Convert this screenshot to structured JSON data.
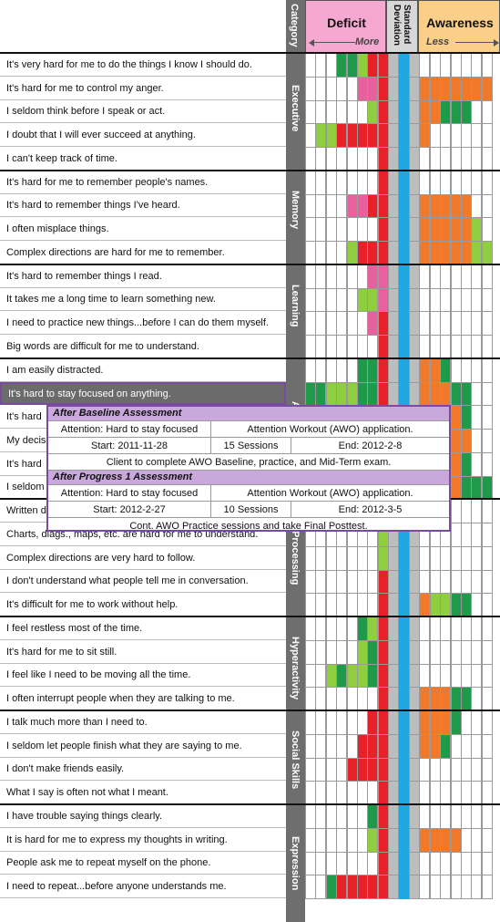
{
  "header": {
    "category": "Category",
    "deficit": "Deficit",
    "deficit_more": "More",
    "std_dev": "Standard Deviation",
    "awareness": "Awareness",
    "awareness_less": "Less"
  },
  "colors": {
    "deficit_header": "#f5a9d0",
    "awareness_header": "#f9cf8a",
    "std_dev_bar": "#1ea7e0",
    "category_strip": "#6e6e6e",
    "dark_green": "#1e9a4a",
    "light_green": "#8fce3e",
    "pink": "#e8609e",
    "red": "#e8202a",
    "orange": "#f07a2a",
    "gray": "#bdbdbd",
    "selection_border": "#7a4aa0"
  },
  "categories": [
    {
      "name": "Executive",
      "start": 0,
      "count": 5
    },
    {
      "name": "Memory",
      "start": 5,
      "count": 4
    },
    {
      "name": "Learning",
      "start": 9,
      "count": 4
    },
    {
      "name": "Attention",
      "start": 13,
      "count": 6
    },
    {
      "name": "Processing",
      "start": 19,
      "count": 5
    },
    {
      "name": "Hyperactivity",
      "start": 24,
      "count": 4
    },
    {
      "name": "Social Skills",
      "start": 28,
      "count": 4
    },
    {
      "name": "Expression",
      "start": 32,
      "count": 5
    }
  ],
  "items": [
    "It's very hard for me to do the things I know I should do.",
    "It's hard for me to control my anger.",
    "I seldom think before I speak or act.",
    "I doubt that I will ever succeed at anything.",
    "I can't keep track of time.",
    "It's hard for me to remember people's names.",
    "It's hard to remember things I've heard.",
    "I often misplace things.",
    "Complex directions are hard for me to remember.",
    "It's hard to remember things I read.",
    "It takes me a long time to learn something new.",
    "I need to practice new things...before I can do them myself.",
    "Big words are difficult for me to understand.",
    "I am easily distracted.",
    "It's hard to stay focused on anything.",
    "It's hard",
    "My decis",
    "It's hard",
    "I seldom",
    "Written d",
    "Charts, diags., maps, etc. are hard for me to understand.",
    "Complex directions are very hard to follow.",
    "I don't understand what people tell me in conversation.",
    "It's difficult for me to work without help.",
    "I feel restless most of the time.",
    "It's hard for me to sit still.",
    "I feel like I need to be moving all the time.",
    "I often interrupt people when they are talking to me.",
    "I talk much more than I need to.",
    "I seldom let people finish what they are saying to me.",
    "I don't make friends easily.",
    "What I say is often not what I meant.",
    "I have trouble saying things clearly.",
    "It is hard for me to express my thoughts in writing.",
    "People ask me to repeat myself on the phone.",
    "I need to repeat...before anyone understands me."
  ],
  "selected_row": 14,
  "grid_pattern": [
    "WWWDDLRRGBGWWWWWWW",
    "WWWWWPPRGBGOOOOOOO",
    "WWWWWWLRGBGOODDDWW",
    "WLLRRRRRGBGOWWWWWW",
    "WWWWWWWRGBGWWWWWWW",
    "WWWWWWWRGBGWWWWWWW",
    "WWWWPPRRGBGOOOOOWW",
    "WWWWWWWRGBGOOOOOLW",
    "WWWWLRRRGBGOOOOOLL",
    "WWWWWWPPGBGWWWWWWW",
    "WWWWWLLPGBGWWWWWWW",
    "WWWWWWPRGBGWWWWWWW",
    "WWWWWWWRGBGWWWWWWW",
    "WWWWWDDRGBGOODWWWW",
    "DDLLLDDRGBGOOODDWW",
    "WWWWWWWRGBGOOOODWW",
    "WWWWWWWRGBGOOOOOWW",
    "WWWWWWWRGBGOOOODWW",
    "WWWWWWWRGBGOOOODDD",
    "WWWWWWWRGBGWWWWWWW",
    "WWWWWWWLGBGWWWWWWW",
    "WWWWWWWLGBGWWWWWWW",
    "WWWWWWWRGBGWWWWWWW",
    "WWWWWWWRGBGOLLDDWW",
    "WWWWWDLRGBGWWWWWWW",
    "WWWWWLDRGBGWWWWWWW",
    "WWLDLLDRGBGWWWWWWW",
    "WWWWWWWRGBGOOODDWW",
    "WWWWWWRRGBGOOODWWW",
    "WWWWWRRRGBGOODWWWW",
    "WWWWRRRRGBGWWWWWWW",
    "WWWWWWWRGBGWWWWWWW",
    "WWWWWWDRGBGWWWWWWW",
    "WWWWWWLRGBGOOOOWWW",
    "WWWWWWWRGBGWWWWWWW",
    "WWDRRRRRGBGWWWWWWW"
  ],
  "popup": {
    "section1_title": "After Baseline Assessment",
    "section1_goal": "Attention: Hard to stay focused",
    "section1_program": "Attention Workout (AWO) application.",
    "section1_start": "Start: 2011-11-28",
    "section1_sessions": "15 Sessions",
    "section1_end": "End: 2012-2-8",
    "section1_note": "Client to complete AWO Baseline, practice, and Mid-Term exam.",
    "section2_title": "After Progress 1 Assessment",
    "section2_goal": "Attention: Hard to stay focused",
    "section2_program": "Attention Workout (AWO) application.",
    "section2_start": "Start: 2012-2-27",
    "section2_sessions": "10 Sessions",
    "section2_end": "End: 2012-3-5",
    "section2_note": "Cont. AWO Practice sessions and take Final Posttest."
  }
}
